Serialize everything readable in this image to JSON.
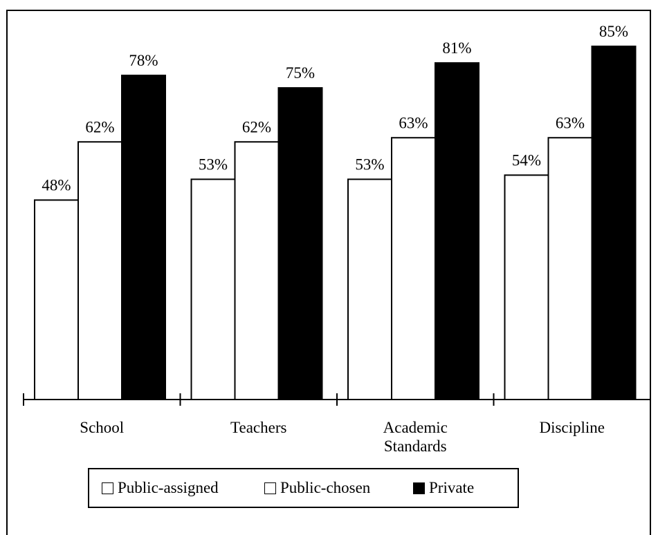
{
  "chart_data": {
    "type": "bar",
    "categories": [
      "School",
      "Teachers",
      "Academic Standards",
      "Discipline"
    ],
    "category_lines": [
      [
        "School"
      ],
      [
        "Teachers"
      ],
      [
        "Academic",
        "Standards"
      ],
      [
        "Discipline"
      ]
    ],
    "series": [
      {
        "name": "Public-assigned",
        "values": [
          48,
          53,
          53,
          54
        ],
        "labels": [
          "48%",
          "53%",
          "53%",
          "54%"
        ],
        "color": "#ffffff"
      },
      {
        "name": "Public-chosen",
        "values": [
          62,
          62,
          63,
          63
        ],
        "labels": [
          "62%",
          "62%",
          "63%",
          "63%"
        ],
        "color": "#ffffff"
      },
      {
        "name": "Private",
        "values": [
          78,
          75,
          81,
          85
        ],
        "labels": [
          "78%",
          "75%",
          "81%",
          "85%"
        ],
        "color": "#000000"
      }
    ],
    "ylim": [
      0,
      100
    ],
    "grid": false,
    "legend_position": "bottom"
  }
}
